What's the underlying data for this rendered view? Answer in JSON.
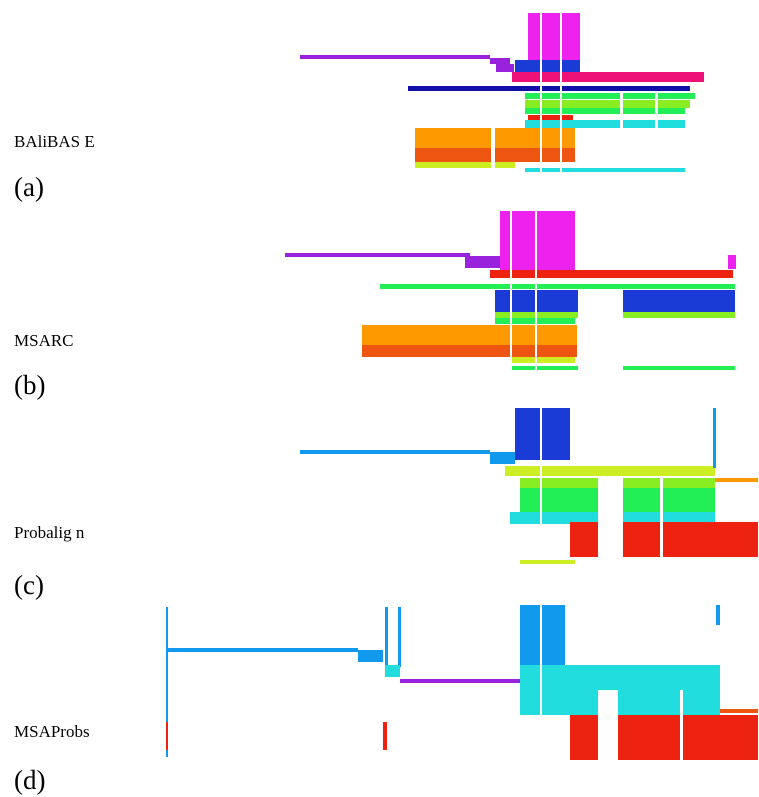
{
  "panels": [
    {
      "label": "BAliBAS E",
      "letter": "(a)"
    },
    {
      "label": "MSARC",
      "letter": "(b)"
    },
    {
      "label": "Probalig n",
      "letter": "(c)"
    },
    {
      "label": "MSAProbs",
      "letter": "(d)"
    }
  ],
  "colors": {
    "magenta": "#ee22ee",
    "violet": "#9922dd",
    "pink": "#ee1177",
    "red": "#ee2211",
    "orange": "#ff9900",
    "dark_orange": "#ee5511",
    "yellow": "#ccee22",
    "green": "#22ee55",
    "lime": "#88ee22",
    "cyan": "#22dddd",
    "sky_blue": "#1199ee",
    "blue": "#1a3bd6",
    "dark_blue": "#1111aa"
  }
}
